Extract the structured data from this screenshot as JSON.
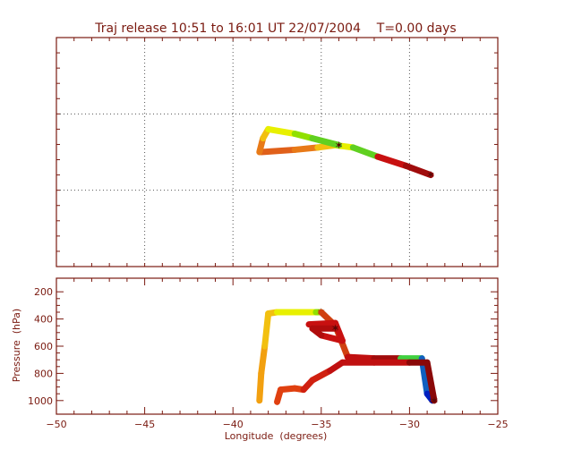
{
  "colors": {
    "frame": "#7a1a10",
    "text": "#7a1a10",
    "grid": "#555555"
  },
  "chart_data": [
    {
      "type": "line",
      "title": "Traj release 10:51 to 16:01 UT 22/07/2004    T=0.00 days",
      "xlabel": "",
      "ylabel": "",
      "xlim": [
        -50,
        -25
      ],
      "grid": true,
      "note_axes": "map view, latitude ticks not labeled",
      "series": [
        {
          "name": "",
          "color_gradient": [
            "#e0601a",
            "#e87a18",
            "#f2c010",
            "#e8f000",
            "#90e000",
            "#60d020",
            "#c81010",
            "#a00c0c",
            "#6a0808"
          ],
          "x": [
            -38.4,
            -36.5,
            -35.2,
            -34.2,
            -33.2,
            -31.8,
            -30.2,
            -28.8
          ],
          "y": [
            0.5,
            0.51,
            0.52,
            0.53,
            0.52,
            0.48,
            0.44,
            0.4
          ]
        },
        {
          "name": "",
          "color_gradient": [
            "#e87a18",
            "#f2c010",
            "#e8f000",
            "#90e000",
            "#60d020"
          ],
          "x": [
            -38.5,
            -38.3,
            -38.0,
            -36.5,
            -35.5,
            -34.0
          ],
          "y": [
            0.5,
            0.56,
            0.6,
            0.58,
            0.56,
            0.53
          ]
        }
      ]
    },
    {
      "type": "line",
      "title": "",
      "xlabel": "Longitude  (degrees)",
      "ylabel": "Pressure  (hPa)",
      "xlim": [
        -50,
        -25
      ],
      "ylim": [
        1100,
        100
      ],
      "xticks": [
        "-50",
        "-45",
        "-40",
        "-35",
        "-30",
        "-25"
      ],
      "yticks": [
        "200",
        "400",
        "600",
        "800",
        "1000"
      ],
      "series": [
        {
          "name": "",
          "color_gradient": [
            "#f2a010",
            "#f2c010",
            "#e8f000",
            "#90e000"
          ],
          "x": [
            -38.5,
            -38.4,
            -38.2,
            -38.0,
            -37.5,
            -36.5,
            -35.3,
            -35.0
          ],
          "y": [
            1000,
            800,
            600,
            360,
            350,
            350,
            350,
            350
          ]
        },
        {
          "name": "",
          "color_gradient": [
            "#d04010",
            "#c01010",
            "#a00c0c",
            "#40d040",
            "#1060c0",
            "#0020c0"
          ],
          "x": [
            -35.0,
            -34.2,
            -33.5,
            -32.0,
            -30.5,
            -29.3,
            -29.0,
            -28.7
          ],
          "y": [
            350,
            450,
            680,
            690,
            690,
            690,
            950,
            1000
          ]
        },
        {
          "name": "",
          "color_gradient": [
            "#e04010",
            "#d02010",
            "#c01010",
            "#8a0808"
          ],
          "x": [
            -37.5,
            -37.3,
            -36.5,
            -36.0,
            -35.5,
            -34.5,
            -33.8,
            -32.0,
            -30.0,
            -29.0,
            -28.6
          ],
          "y": [
            1010,
            920,
            910,
            920,
            850,
            780,
            720,
            720,
            720,
            720,
            1000
          ]
        },
        {
          "name": "",
          "color_gradient": [
            "#c81010",
            "#b00c0c"
          ],
          "x": [
            -35.7,
            -34.2,
            -33.8,
            -35.0,
            -35.5,
            -34.2
          ],
          "y": [
            440,
            430,
            560,
            520,
            470,
            470
          ]
        }
      ]
    }
  ]
}
